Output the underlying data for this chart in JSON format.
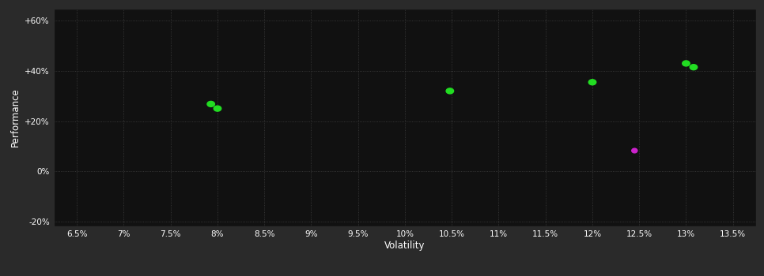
{
  "background_color": "#2a2a2a",
  "plot_bg_color": "#111111",
  "grid_color": "#404040",
  "text_color": "#ffffff",
  "xlabel": "Volatility",
  "ylabel": "Performance",
  "xlim": [
    0.0625,
    0.1375
  ],
  "ylim": [
    -0.22,
    0.65
  ],
  "xticks": [
    0.065,
    0.07,
    0.075,
    0.08,
    0.085,
    0.09,
    0.095,
    0.1,
    0.105,
    0.11,
    0.115,
    0.12,
    0.125,
    0.13,
    0.135
  ],
  "yticks": [
    -0.2,
    0.0,
    0.2,
    0.4,
    0.6
  ],
  "ytick_labels": [
    "-20%",
    "0%",
    "+20%",
    "+40%",
    "+60%"
  ],
  "xtick_labels": [
    "6.5%",
    "7%",
    "7.5%",
    "8%",
    "8.5%",
    "9%",
    "9.5%",
    "10%",
    "10.5%",
    "11%",
    "11.5%",
    "12%",
    "12.5%",
    "13%",
    "13.5%"
  ],
  "green_points": [
    [
      0.0793,
      0.268
    ],
    [
      0.08,
      0.25
    ],
    [
      0.1048,
      0.32
    ],
    [
      0.12,
      0.355
    ],
    [
      0.13,
      0.43
    ],
    [
      0.1308,
      0.415
    ]
  ],
  "magenta_points": [
    [
      0.1245,
      0.082
    ]
  ],
  "green_color": "#22dd22",
  "magenta_color": "#cc22cc",
  "marker_size": 12,
  "marker_size_large": 20
}
